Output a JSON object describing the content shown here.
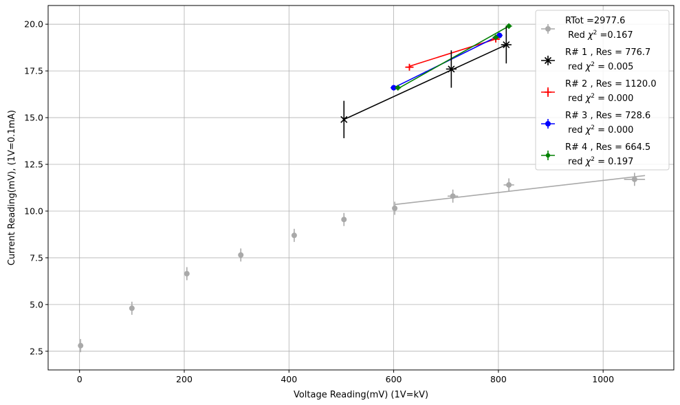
{
  "chart_data": {
    "type": "scatter",
    "title": "",
    "xlabel": "Voltage Reading(mV) (1V=kV)",
    "ylabel": "Current Reading(mV), (1V=0.1mA)",
    "xlim": [
      -60,
      1135
    ],
    "ylim": [
      1.5,
      21.0
    ],
    "xticks": [
      0,
      200,
      400,
      600,
      800,
      1000
    ],
    "yticks": [
      2.5,
      5.0,
      7.5,
      10.0,
      12.5,
      15.0,
      17.5,
      20.0
    ],
    "xtick_labels": [
      "0",
      "200",
      "400",
      "600",
      "800",
      "1000"
    ],
    "ytick_labels": [
      "2.5",
      "5.0",
      "7.5",
      "10.0",
      "12.5",
      "15.0",
      "17.5",
      "20.0"
    ],
    "grid": true,
    "legend_position": "top-right",
    "series": [
      {
        "name": "RTot =2977.6",
        "name_line2_prefix": "Red",
        "name_line2_chi": "χ",
        "name_line2_exp": "2",
        "name_line2_value": "=0.167",
        "color": "#a9a9a9",
        "marker": "circle",
        "x": [
          2,
          100,
          205,
          308,
          410,
          505,
          602,
          713,
          820,
          1060
        ],
        "y": [
          2.8,
          4.8,
          6.65,
          7.65,
          8.7,
          9.55,
          10.15,
          10.8,
          11.4,
          11.7
        ],
        "yerr": [
          0.35,
          0.35,
          0.35,
          0.35,
          0.35,
          0.35,
          0.35,
          0.35,
          0.35,
          0.35
        ],
        "xerr": [
          0,
          0,
          0,
          0,
          0,
          0,
          0,
          10,
          10,
          20
        ],
        "fit_x": [
          602,
          1080
        ],
        "fit_y": [
          10.35,
          11.9
        ]
      },
      {
        "name": "R# 1 , Res = 776.7",
        "name_line2_prefix": "red",
        "name_line2_chi": "χ",
        "name_line2_exp": "2",
        "name_line2_value": "= 0.005",
        "color": "#000000",
        "marker": "x",
        "x": [
          505,
          710,
          815
        ],
        "y": [
          14.9,
          17.6,
          18.9
        ],
        "yerr": [
          1.0,
          1.0,
          1.0
        ],
        "xerr": [
          0,
          10,
          10
        ],
        "fit_x": [
          505,
          815
        ],
        "fit_y": [
          14.9,
          18.9
        ]
      },
      {
        "name": "R# 2 , Res = 1120.0",
        "name_line2_prefix": "red",
        "name_line2_chi": "χ",
        "name_line2_exp": "2",
        "name_line2_value": "= 0.000",
        "color": "#ff0000",
        "marker": "plus",
        "x": [
          630,
          795
        ],
        "y": [
          17.7,
          19.2
        ],
        "yerr": [
          0.15,
          0.15
        ],
        "xerr": [
          8,
          8
        ],
        "fit_x": [
          630,
          800
        ],
        "fit_y": [
          17.75,
          19.25
        ]
      },
      {
        "name": "R# 3 , Res = 728.6",
        "name_line2_prefix": "red",
        "name_line2_chi": "χ",
        "name_line2_exp": "2",
        "name_line2_value": "= 0.000",
        "color": "#0000ff",
        "marker": "circle",
        "x": [
          600,
          802
        ],
        "y": [
          16.6,
          19.4
        ],
        "yerr": [
          0.15,
          0.15
        ],
        "xerr": [
          6,
          6
        ],
        "fit_x": [
          600,
          802
        ],
        "fit_y": [
          16.6,
          19.4
        ]
      },
      {
        "name": "R# 4 , Res = 664.5",
        "name_line2_prefix": "red",
        "name_line2_chi": "χ",
        "name_line2_exp": "2",
        "name_line2_value": "= 0.197",
        "color": "#008000",
        "marker": "circle-small",
        "x": [
          608,
          795,
          820
        ],
        "y": [
          16.6,
          19.3,
          19.9
        ],
        "yerr": [
          0.15,
          0.15,
          0.15
        ],
        "xerr": [
          6,
          6,
          6
        ],
        "fit_x": [
          608,
          820
        ],
        "fit_y": [
          16.55,
          19.9
        ]
      }
    ]
  }
}
